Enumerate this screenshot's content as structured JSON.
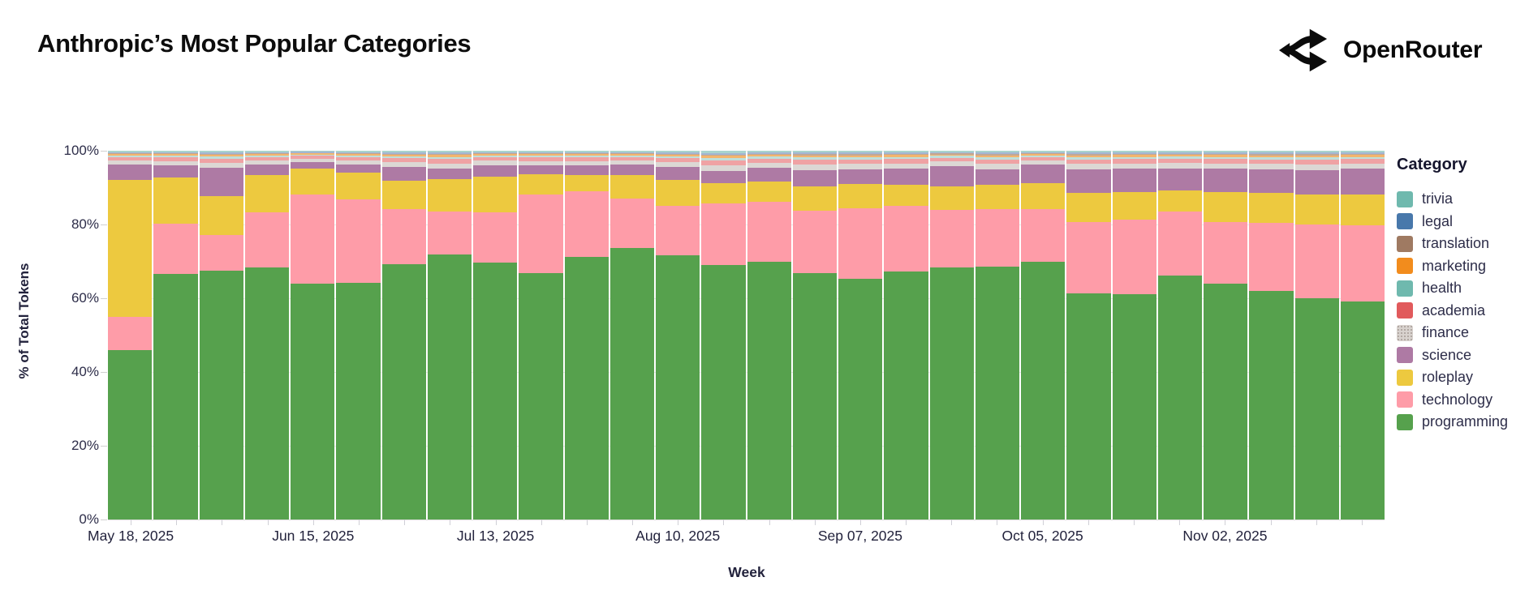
{
  "header": {
    "title": "Anthropic’s Most Popular Categories",
    "brand": {
      "name": "OpenRouter",
      "icon": "openrouter-fork-icon"
    }
  },
  "legend": {
    "title": "Category"
  },
  "chart_data": {
    "type": "bar",
    "stacked": true,
    "title": "Anthropic’s Most Popular Categories",
    "xlabel": "Week",
    "ylabel": "% of Total Tokens",
    "ylim": [
      0,
      100
    ],
    "grid": "horizontal",
    "legend_position": "right",
    "yticks": [
      "100%",
      "80%",
      "60%",
      "40%",
      "20%",
      "0%"
    ],
    "xticks_shown": [
      {
        "index": 0,
        "label": "May 18, 2025"
      },
      {
        "index": 4,
        "label": "Jun 15, 2025"
      },
      {
        "index": 8,
        "label": "Jul 13, 2025"
      },
      {
        "index": 12,
        "label": "Aug 10, 2025"
      },
      {
        "index": 16,
        "label": "Sep 07, 2025"
      },
      {
        "index": 20,
        "label": "Oct 05, 2025"
      },
      {
        "index": 24,
        "label": "Nov 02, 2025"
      }
    ],
    "categories": [
      {
        "key": "trivia",
        "label": "trivia",
        "legend_color": "#6fb9ae",
        "bar_color": "#a9d4ce",
        "swatch_pattern": "solid"
      },
      {
        "key": "legal",
        "label": "legal",
        "legend_color": "#4878ab",
        "bar_color": "#a3b6d2",
        "swatch_pattern": "solid"
      },
      {
        "key": "translation",
        "label": "translation",
        "legend_color": "#9f7a62",
        "bar_color": "#c2a795",
        "swatch_pattern": "solid"
      },
      {
        "key": "marketing",
        "label": "marketing",
        "legend_color": "#f28c1d",
        "bar_color": "#f4b56d",
        "swatch_pattern": "solid"
      },
      {
        "key": "health",
        "label": "health",
        "legend_color": "#6fb9ae",
        "bar_color": "#bfdfda",
        "swatch_pattern": "solid"
      },
      {
        "key": "academia",
        "label": "academia",
        "legend_color": "#e15a5c",
        "bar_color": "#efa2a4",
        "swatch_pattern": "solid"
      },
      {
        "key": "finance",
        "label": "finance",
        "legend_color": "#d8d2ce",
        "bar_color": "#dcd7d4",
        "swatch_pattern": "dotted"
      },
      {
        "key": "science",
        "label": "science",
        "legend_color": "#ae7aa4",
        "bar_color": "#ae7aa4",
        "swatch_pattern": "solid"
      },
      {
        "key": "roleplay",
        "label": "roleplay",
        "legend_color": "#edc93f",
        "bar_color": "#edc93f",
        "swatch_pattern": "solid"
      },
      {
        "key": "technology",
        "label": "technology",
        "legend_color": "#fe9ca8",
        "bar_color": "#fe9ca8",
        "swatch_pattern": "solid"
      },
      {
        "key": "programming",
        "label": "programming",
        "legend_color": "#56a14d",
        "bar_color": "#56a14d",
        "swatch_pattern": "solid"
      }
    ],
    "stack_order_bottom_to_top": [
      "programming",
      "technology",
      "roleplay",
      "science",
      "finance",
      "academia",
      "health",
      "marketing",
      "translation",
      "legal",
      "trivia"
    ],
    "weeks": [
      {
        "week": "May 18, 2025",
        "values": [
          46.0,
          9.0,
          37.0,
          4.3,
          1.1,
          0.9,
          0.45,
          0.35,
          0.2,
          0.3,
          0.4
        ]
      },
      {
        "week": "May 25, 2025",
        "values": [
          66.6,
          13.7,
          12.4,
          3.3,
          1.2,
          0.96,
          0.48,
          0.4,
          0.24,
          0.32,
          0.4
        ]
      },
      {
        "week": "Jun 01, 2025",
        "values": [
          67.5,
          9.7,
          10.6,
          7.6,
          1.4,
          1.1,
          0.55,
          0.46,
          0.28,
          0.37,
          0.46
        ]
      },
      {
        "week": "Jun 08, 2025",
        "values": [
          68.3,
          15.0,
          10.0,
          2.9,
          1.14,
          0.91,
          0.46,
          0.38,
          0.23,
          0.3,
          0.38
        ]
      },
      {
        "week": "Jun 15, 2025",
        "values": [
          63.9,
          24.3,
          7.0,
          1.7,
          0.93,
          0.74,
          0.37,
          0.31,
          0.19,
          0.25,
          0.31
        ]
      },
      {
        "week": "Jun 22, 2025",
        "values": [
          64.2,
          22.6,
          7.2,
          2.3,
          1.11,
          0.89,
          0.44,
          0.37,
          0.22,
          0.3,
          0.37
        ]
      },
      {
        "week": "Jun 29, 2025",
        "values": [
          69.3,
          14.8,
          7.8,
          3.6,
          1.35,
          1.08,
          0.54,
          0.45,
          0.27,
          0.36,
          0.45
        ]
      },
      {
        "week": "Jul 06, 2025",
        "values": [
          71.8,
          11.7,
          8.7,
          2.9,
          1.47,
          1.18,
          0.59,
          0.49,
          0.29,
          0.39,
          0.49
        ]
      },
      {
        "week": "Jul 13, 2025",
        "values": [
          69.7,
          13.5,
          9.8,
          3.1,
          1.17,
          0.94,
          0.47,
          0.39,
          0.23,
          0.31,
          0.39
        ]
      },
      {
        "week": "Jul 20, 2025",
        "values": [
          66.8,
          21.3,
          5.5,
          2.4,
          1.2,
          0.96,
          0.48,
          0.4,
          0.24,
          0.32,
          0.4
        ]
      },
      {
        "week": "Jul 27, 2025",
        "values": [
          71.1,
          17.9,
          4.4,
          2.6,
          1.2,
          0.96,
          0.48,
          0.4,
          0.24,
          0.32,
          0.4
        ]
      },
      {
        "week": "Aug 03, 2025",
        "values": [
          73.6,
          13.4,
          6.5,
          2.8,
          1.11,
          0.89,
          0.44,
          0.37,
          0.22,
          0.3,
          0.37
        ]
      },
      {
        "week": "Aug 10, 2025",
        "values": [
          71.6,
          13.4,
          7.0,
          3.6,
          1.32,
          1.06,
          0.53,
          0.44,
          0.26,
          0.35,
          0.44
        ]
      },
      {
        "week": "Aug 17, 2025",
        "values": [
          69.0,
          16.7,
          5.5,
          3.3,
          1.65,
          1.32,
          0.66,
          0.55,
          0.33,
          0.44,
          0.55
        ]
      },
      {
        "week": "Aug 24, 2025",
        "values": [
          69.8,
          16.3,
          5.6,
          3.7,
          1.38,
          1.1,
          0.55,
          0.46,
          0.28,
          0.37,
          0.46
        ]
      },
      {
        "week": "Aug 31, 2025",
        "values": [
          66.8,
          16.9,
          6.6,
          4.4,
          1.59,
          1.27,
          0.64,
          0.53,
          0.32,
          0.42,
          0.53
        ]
      },
      {
        "week": "Sep 07, 2025",
        "values": [
          65.3,
          19.1,
          6.6,
          3.9,
          1.53,
          1.22,
          0.61,
          0.51,
          0.31,
          0.41,
          0.51
        ]
      },
      {
        "week": "Sep 14, 2025",
        "values": [
          67.3,
          17.7,
          5.7,
          4.4,
          1.47,
          1.18,
          0.59,
          0.49,
          0.29,
          0.39,
          0.49
        ]
      },
      {
        "week": "Sep 21, 2025",
        "values": [
          68.3,
          15.6,
          6.4,
          5.5,
          1.26,
          1.01,
          0.5,
          0.42,
          0.25,
          0.34,
          0.42
        ]
      },
      {
        "week": "Sep 28, 2025",
        "values": [
          68.5,
          15.7,
          6.6,
          4.1,
          1.53,
          1.22,
          0.61,
          0.51,
          0.31,
          0.41,
          0.51
        ]
      },
      {
        "week": "Oct 05, 2025",
        "values": [
          69.8,
          14.3,
          7.1,
          5.1,
          1.11,
          0.89,
          0.44,
          0.37,
          0.22,
          0.3,
          0.37
        ]
      },
      {
        "week": "Oct 12, 2025",
        "values": [
          61.2,
          19.5,
          7.8,
          6.4,
          1.53,
          1.22,
          0.61,
          0.51,
          0.31,
          0.41,
          0.51
        ]
      },
      {
        "week": "Oct 19, 2025",
        "values": [
          61.0,
          20.3,
          7.5,
          6.3,
          1.47,
          1.18,
          0.59,
          0.49,
          0.29,
          0.39,
          0.49
        ]
      },
      {
        "week": "Oct 26, 2025",
        "values": [
          66.1,
          17.4,
          5.7,
          6.0,
          1.44,
          1.15,
          0.58,
          0.48,
          0.29,
          0.38,
          0.48
        ]
      },
      {
        "week": "Nov 02, 2025",
        "values": [
          63.9,
          16.7,
          8.2,
          6.3,
          1.47,
          1.18,
          0.59,
          0.49,
          0.29,
          0.39,
          0.49
        ]
      },
      {
        "week": "Nov 09, 2025",
        "values": [
          61.9,
          18.5,
          8.1,
          6.4,
          1.53,
          1.22,
          0.61,
          0.51,
          0.31,
          0.41,
          0.51
        ]
      },
      {
        "week": "Nov 16, 2025",
        "values": [
          59.9,
          20.1,
          8.1,
          6.6,
          1.59,
          1.27,
          0.64,
          0.53,
          0.32,
          0.42,
          0.53
        ]
      },
      {
        "week": "Nov 23, 2025",
        "values": [
          59.0,
          20.8,
          8.4,
          6.9,
          1.47,
          1.18,
          0.59,
          0.49,
          0.29,
          0.39,
          0.49
        ]
      }
    ]
  }
}
